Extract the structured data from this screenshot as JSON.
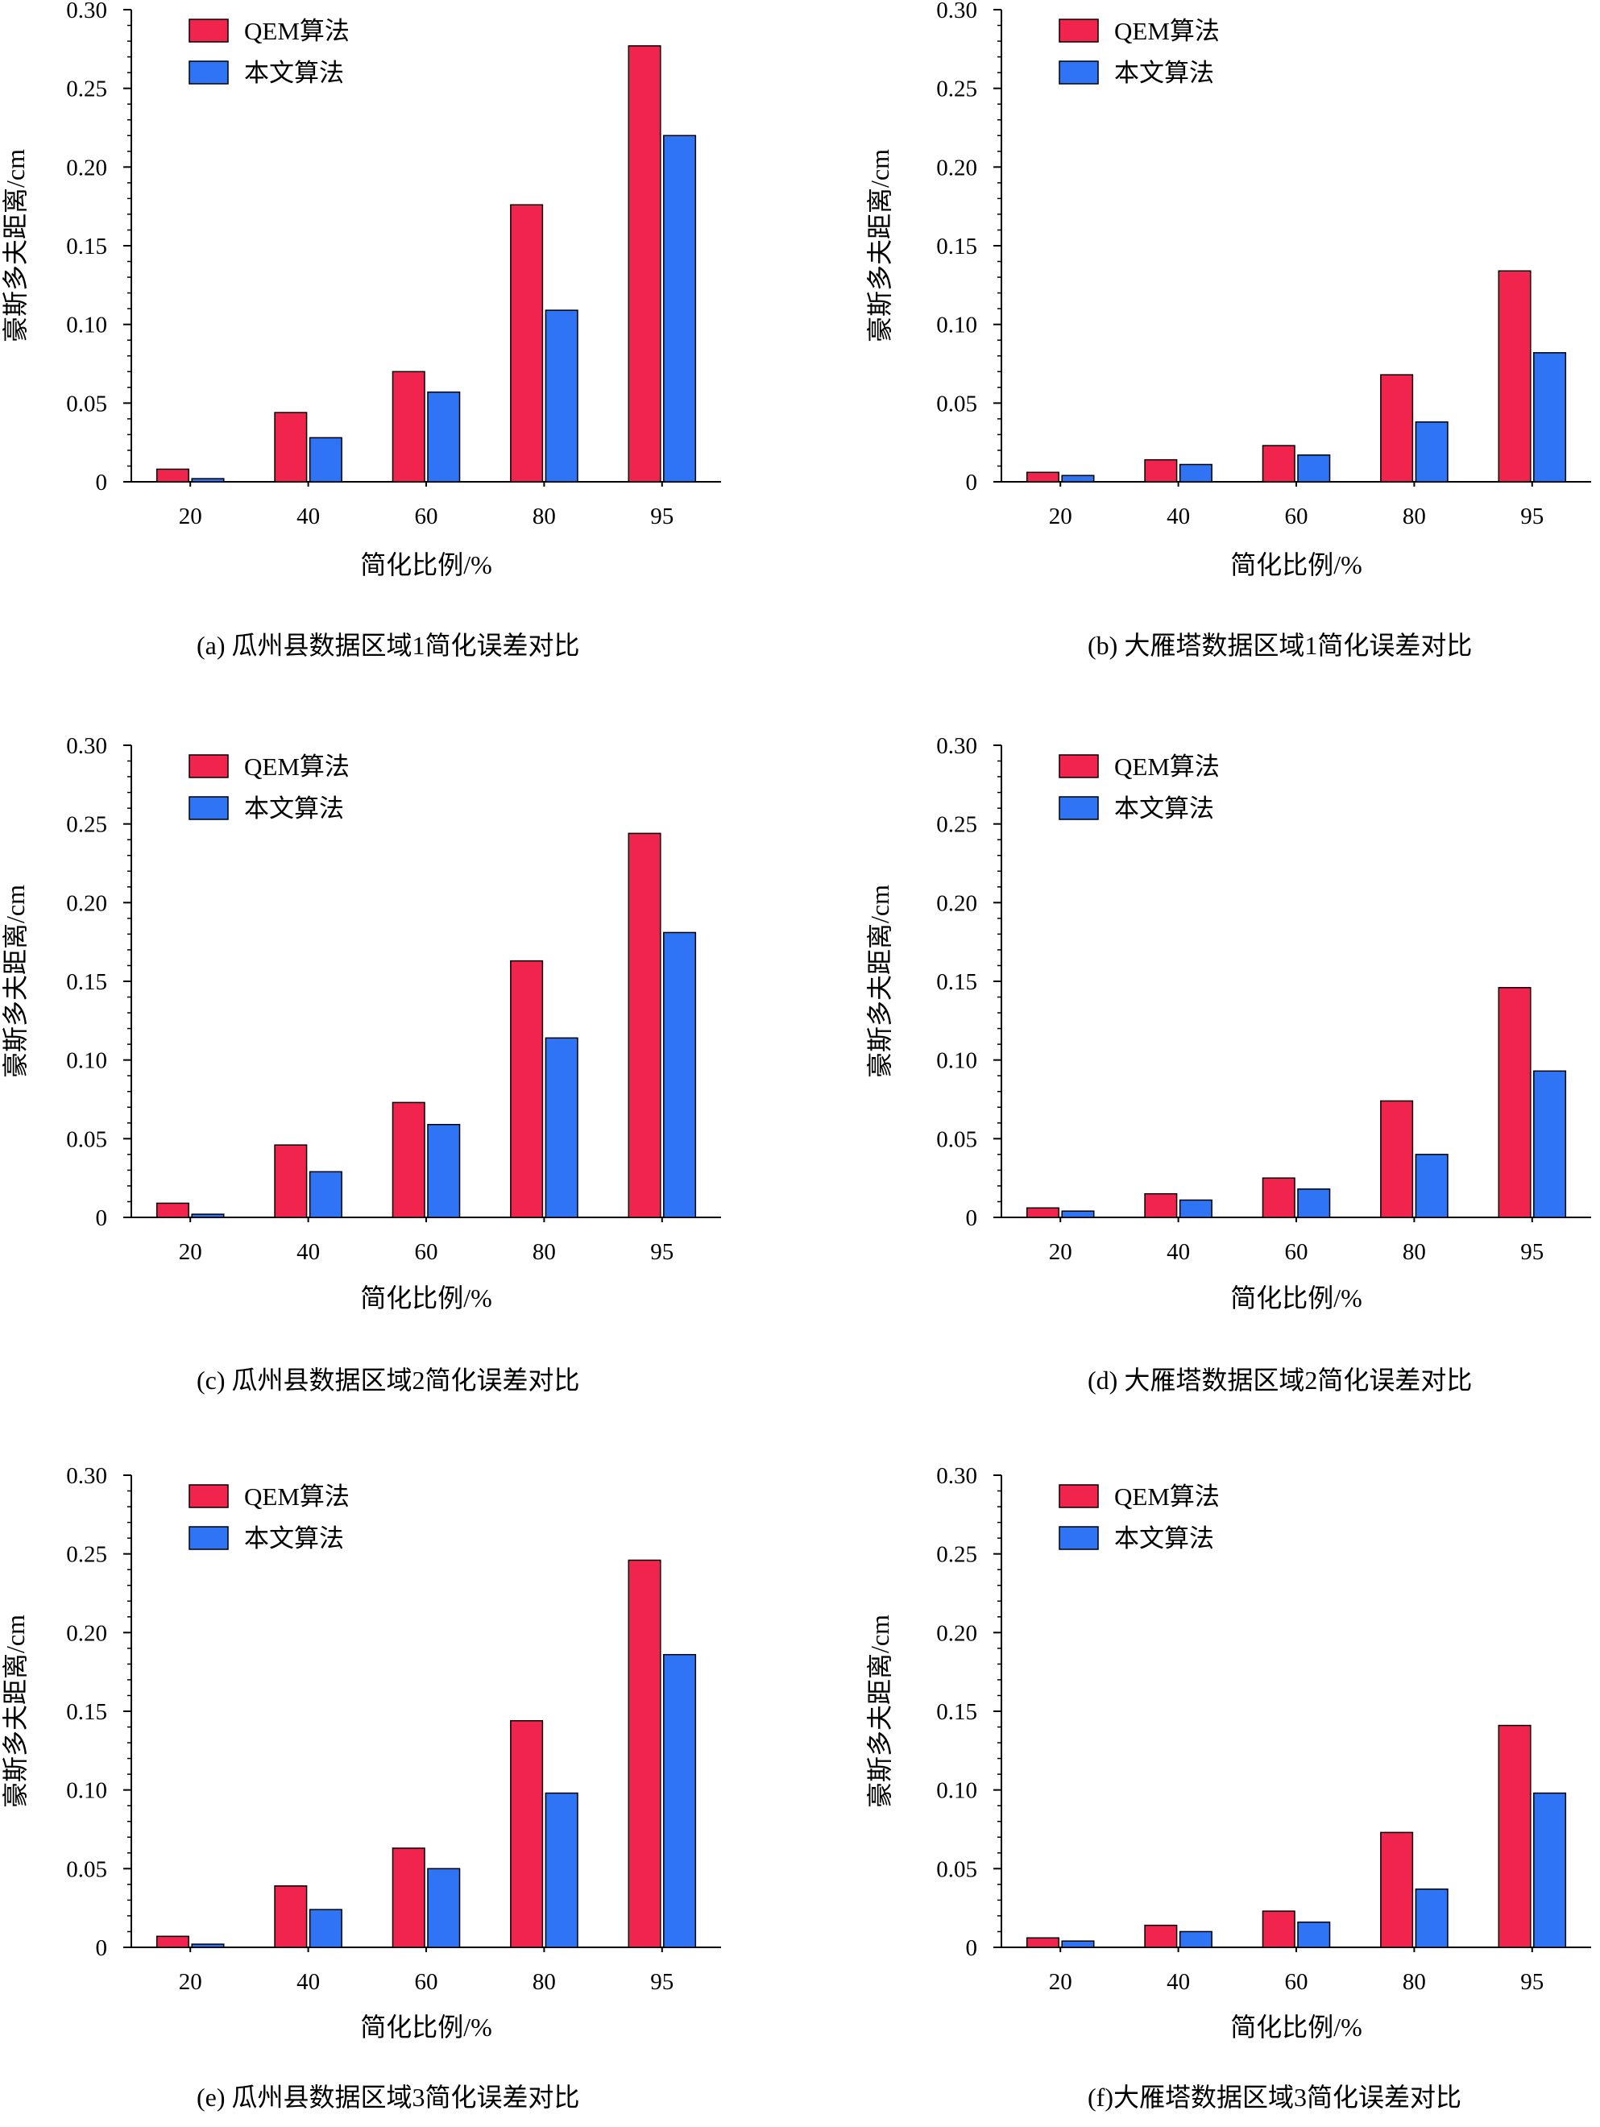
{
  "colors": {
    "qem": "#f0244d",
    "ours": "#2f74f5",
    "axis": "#000000"
  },
  "chart_data": [
    {
      "type": "bar",
      "caption": "(a) 瓜州县数据区域1简化误差对比",
      "xlabel": "简化比例/%",
      "ylabel": "豪斯多夫距离/cm",
      "categories": [
        "20",
        "40",
        "60",
        "80",
        "95"
      ],
      "series": [
        {
          "name": "QEM算法",
          "values": [
            0.008,
            0.044,
            0.07,
            0.176,
            0.277
          ]
        },
        {
          "name": "本文算法",
          "values": [
            0.002,
            0.028,
            0.057,
            0.109,
            0.22
          ]
        }
      ],
      "ylim": [
        0,
        0.3
      ],
      "yticks": [
        "0",
        "0.05",
        "0.10",
        "0.15",
        "0.20",
        "0.25",
        "0.30"
      ],
      "legend": "top-left",
      "grid": false
    },
    {
      "type": "bar",
      "caption": "(b) 大雁塔数据区域1简化误差对比",
      "xlabel": "简化比例/%",
      "ylabel": "豪斯多夫距离/cm",
      "categories": [
        "20",
        "40",
        "60",
        "80",
        "95"
      ],
      "series": [
        {
          "name": "QEM算法",
          "values": [
            0.006,
            0.014,
            0.023,
            0.068,
            0.134
          ]
        },
        {
          "name": "本文算法",
          "values": [
            0.004,
            0.011,
            0.017,
            0.038,
            0.082
          ]
        }
      ],
      "ylim": [
        0,
        0.3
      ],
      "yticks": [
        "0",
        "0.05",
        "0.10",
        "0.15",
        "0.20",
        "0.25",
        "0.30"
      ],
      "legend": "top-left",
      "grid": false
    },
    {
      "type": "bar",
      "caption": "(c) 瓜州县数据区域2简化误差对比",
      "xlabel": "简化比例/%",
      "ylabel": "豪斯多夫距离/cm",
      "categories": [
        "20",
        "40",
        "60",
        "80",
        "95"
      ],
      "series": [
        {
          "name": "QEM算法",
          "values": [
            0.009,
            0.046,
            0.073,
            0.163,
            0.244
          ]
        },
        {
          "name": "本文算法",
          "values": [
            0.002,
            0.029,
            0.059,
            0.114,
            0.181
          ]
        }
      ],
      "ylim": [
        0,
        0.3
      ],
      "yticks": [
        "0",
        "0.05",
        "0.10",
        "0.15",
        "0.20",
        "0.25",
        "0.30"
      ],
      "legend": "top-left",
      "grid": false
    },
    {
      "type": "bar",
      "caption": "(d) 大雁塔数据区域2简化误差对比",
      "xlabel": "简化比例/%",
      "ylabel": "豪斯多夫距离/cm",
      "categories": [
        "20",
        "40",
        "60",
        "80",
        "95"
      ],
      "series": [
        {
          "name": "QEM算法",
          "values": [
            0.006,
            0.015,
            0.025,
            0.074,
            0.146
          ]
        },
        {
          "name": "本文算法",
          "values": [
            0.004,
            0.011,
            0.018,
            0.04,
            0.093
          ]
        }
      ],
      "ylim": [
        0,
        0.3
      ],
      "yticks": [
        "0",
        "0.05",
        "0.10",
        "0.15",
        "0.20",
        "0.25",
        "0.30"
      ],
      "legend": "top-left",
      "grid": false
    },
    {
      "type": "bar",
      "caption": "(e) 瓜州县数据区域3简化误差对比",
      "xlabel": "简化比例/%",
      "ylabel": "豪斯多夫距离/cm",
      "categories": [
        "20",
        "40",
        "60",
        "80",
        "95"
      ],
      "series": [
        {
          "name": "QEM算法",
          "values": [
            0.007,
            0.039,
            0.063,
            0.144,
            0.246
          ]
        },
        {
          "name": "本文算法",
          "values": [
            0.002,
            0.024,
            0.05,
            0.098,
            0.186
          ]
        }
      ],
      "ylim": [
        0,
        0.3
      ],
      "yticks": [
        "0",
        "0.05",
        "0.10",
        "0.15",
        "0.20",
        "0.25",
        "0.30"
      ],
      "legend": "top-left",
      "grid": false
    },
    {
      "type": "bar",
      "caption": "(f)大雁塔数据区域3简化误差对比",
      "xlabel": "简化比例/%",
      "ylabel": "豪斯多夫距离/cm",
      "categories": [
        "20",
        "40",
        "60",
        "80",
        "95"
      ],
      "series": [
        {
          "name": "QEM算法",
          "values": [
            0.006,
            0.014,
            0.023,
            0.073,
            0.141
          ]
        },
        {
          "name": "本文算法",
          "values": [
            0.004,
            0.01,
            0.016,
            0.037,
            0.098
          ]
        }
      ],
      "ylim": [
        0,
        0.3
      ],
      "yticks": [
        "0",
        "0.05",
        "0.10",
        "0.15",
        "0.20",
        "0.25",
        "0.30"
      ],
      "legend": "top-left",
      "grid": false
    }
  ]
}
